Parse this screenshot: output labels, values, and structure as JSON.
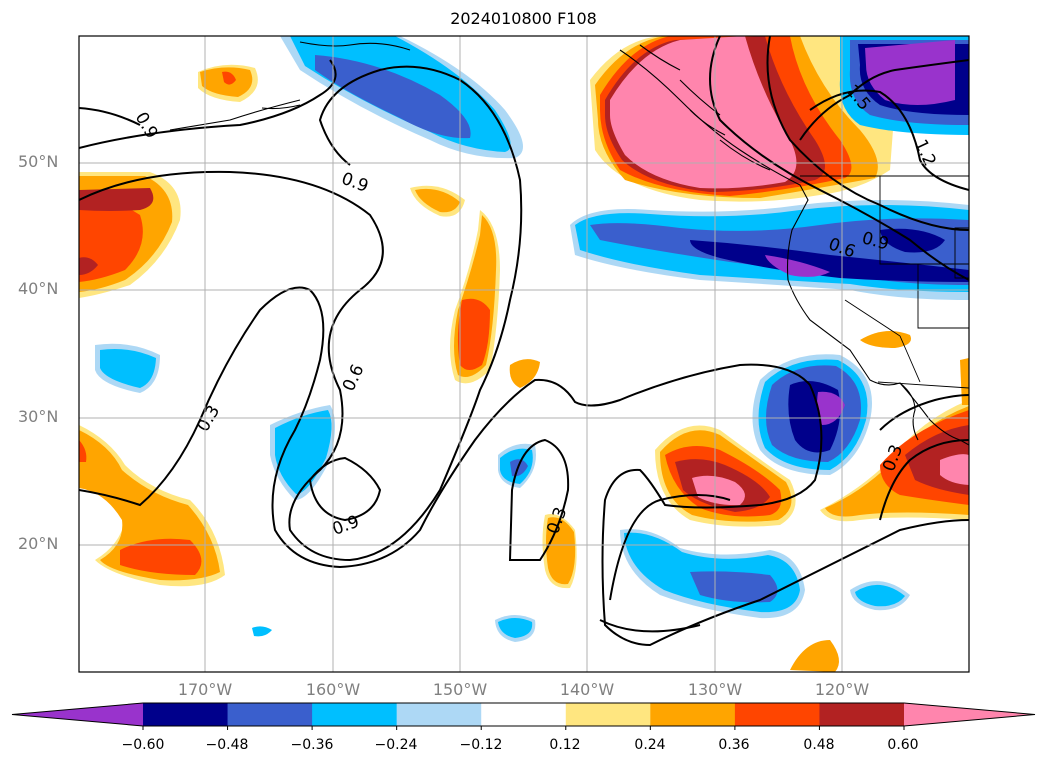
{
  "title": "2024010800 F108",
  "lat_labels": [
    "50°N",
    "40°N",
    "30°N",
    "20°N"
  ],
  "lon_labels": [
    "170°W",
    "160°W",
    "150°W",
    "140°W",
    "130°W",
    "120°W"
  ],
  "contour_labels": [
    "0.9",
    "0.9",
    "0.9",
    "0.9",
    "0.6",
    "0.6",
    "0.3",
    "0.3",
    "0.3",
    "1.2",
    "1.5"
  ],
  "colorbar": {
    "tick_labels": [
      "−0.60",
      "−0.48",
      "−0.36",
      "−0.24",
      "−0.12",
      "0.12",
      "0.24",
      "0.36",
      "0.48",
      "0.60"
    ],
    "colors": [
      "#9933cc",
      "#00008b",
      "#3a5fcd",
      "#00bfff",
      "#add8f5",
      "#ffffff",
      "#ffe680",
      "#ffa500",
      "#ff4500",
      "#b22222",
      "#ff85ad"
    ],
    "extend": "both"
  },
  "palette": {
    "purple": "#9933cc",
    "navy": "#00008b",
    "royal": "#3a5fcd",
    "sky": "#00bfff",
    "pale_blue": "#add8f5",
    "pale_yellow": "#ffe680",
    "orange": "#ffa500",
    "red_orange": "#ff4500",
    "firebrick": "#b22222",
    "pink": "#ff85ad"
  }
}
